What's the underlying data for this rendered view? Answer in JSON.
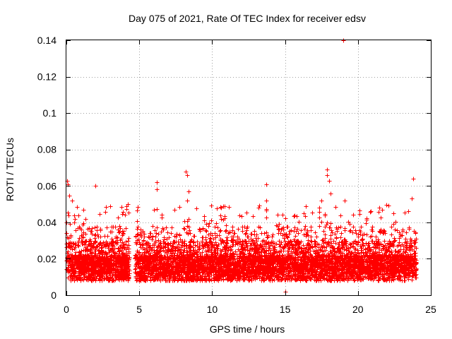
{
  "chart_data": {
    "type": "scatter",
    "title": "Day 075 of 2021, Rate Of TEC Index for receiver edsv",
    "xlabel": "GPS time / hours",
    "ylabel": "ROTI / TECUs",
    "xlim": [
      0,
      25
    ],
    "ylim": [
      0,
      0.14
    ],
    "xticks": [
      0,
      5,
      10,
      15,
      20,
      25
    ],
    "xtick_labels": [
      "0",
      "5",
      "10",
      "15",
      "20",
      "25"
    ],
    "yticks": [
      0,
      0.02,
      0.04,
      0.06,
      0.08,
      0.1,
      0.12,
      0.14
    ],
    "ytick_labels": [
      "0",
      "0.02",
      "0.04",
      "0.06",
      "0.08",
      "0.1",
      "0.12",
      "0.14"
    ],
    "grid": true,
    "marker": "+",
    "marker_color": "#ff0000",
    "data_gap_hours": [
      4.3,
      4.7
    ],
    "x_range_hours": [
      0,
      24
    ],
    "typical_range": [
      0.008,
      0.03
    ],
    "approx_sample_count": 6500,
    "notable_points": [
      {
        "x": 0.05,
        "y": 0.063
      },
      {
        "x": 0.1,
        "y": 0.061
      },
      {
        "x": 2.0,
        "y": 0.06
      },
      {
        "x": 6.2,
        "y": 0.062
      },
      {
        "x": 6.2,
        "y": 0.058
      },
      {
        "x": 8.2,
        "y": 0.068
      },
      {
        "x": 8.3,
        "y": 0.066
      },
      {
        "x": 8.4,
        "y": 0.057
      },
      {
        "x": 8.3,
        "y": 0.052
      },
      {
        "x": 13.7,
        "y": 0.061
      },
      {
        "x": 13.7,
        "y": 0.052
      },
      {
        "x": 17.9,
        "y": 0.069
      },
      {
        "x": 17.9,
        "y": 0.066
      },
      {
        "x": 18.0,
        "y": 0.063
      },
      {
        "x": 18.1,
        "y": 0.056
      },
      {
        "x": 17.5,
        "y": 0.052
      },
      {
        "x": 19.0,
        "y": 0.14
      },
      {
        "x": 19.1,
        "y": 0.052
      },
      {
        "x": 23.8,
        "y": 0.064
      },
      {
        "x": 23.7,
        "y": 0.053
      },
      {
        "x": 15.0,
        "y": 0.002
      },
      {
        "x": 4.2,
        "y": 0.05
      },
      {
        "x": 0.4,
        "y": 0.052
      }
    ]
  }
}
